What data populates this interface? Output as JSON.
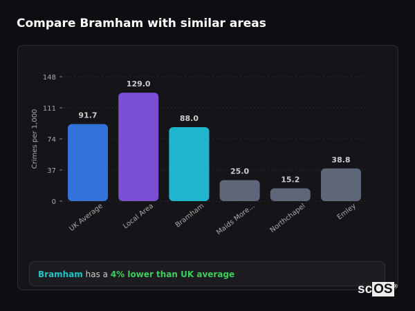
{
  "title": "Compare Bramham with similar areas",
  "chart_data": {
    "type": "bar",
    "ylabel": "Crimes per 1,000",
    "ylim": [
      0,
      148
    ],
    "yticks": [
      0,
      37,
      74,
      111,
      148
    ],
    "categories": [
      "UK Average",
      "Local Area",
      "Bramham",
      "Maids More...",
      "Northchapel",
      "Emley"
    ],
    "values": [
      91.7,
      129.0,
      88.0,
      25.0,
      15.2,
      38.8
    ],
    "labels": [
      "91.7",
      "129.0",
      "88.0",
      "25.0",
      "15.2",
      "38.8"
    ],
    "colors": [
      "#3373d9",
      "#7b4fd4",
      "#1fb5cf",
      "#5d6779",
      "#5d6779",
      "#5d6779"
    ],
    "grid": true
  },
  "summary": {
    "area": "Bramham",
    "middle": " has a ",
    "highlight": "4% lower than UK average"
  },
  "logo": {
    "text_a": "sc",
    "text_b": "OS",
    "mark": "®"
  }
}
